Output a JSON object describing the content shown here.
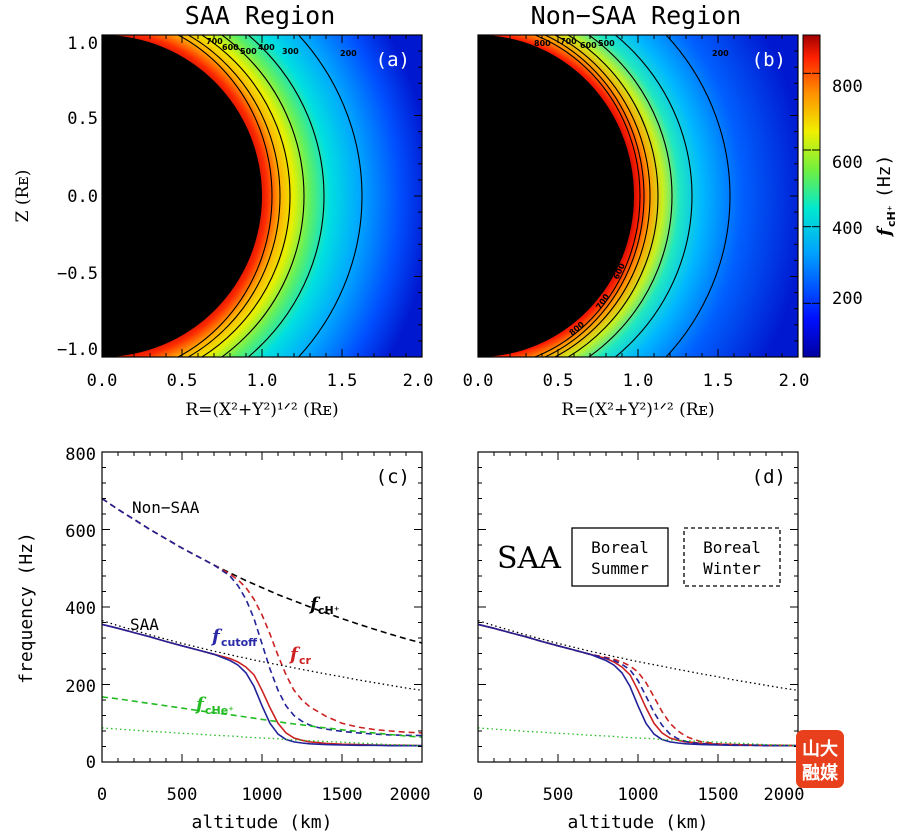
{
  "chart_data": [
    {
      "type": "heatmap",
      "panel": "(a)",
      "title": "SAA Region",
      "xlabel": "R=(X²+Y²)¹ᐟ² (Rᴇ)",
      "ylabel": "Z (Rᴇ)",
      "xlim": [
        0.0,
        2.0
      ],
      "ylim": [
        -1.05,
        1.05
      ],
      "xticks": [
        "0.0",
        "0.5",
        "1.0",
        "1.5",
        "2.0"
      ],
      "yticks": [
        "1.0",
        "0.5",
        "0.0",
        "−0.5",
        "−1.0"
      ],
      "contour_levels": [
        "700",
        "600",
        "500",
        "400",
        "300",
        "200"
      ]
    },
    {
      "type": "heatmap",
      "panel": "(b)",
      "title": "Non−SAA Region",
      "xlabel": "R=(X²+Y²)¹ᐟ² (Rᴇ)",
      "xlim": [
        0.0,
        2.0
      ],
      "ylim": [
        -1.05,
        1.05
      ],
      "xticks": [
        "0.0",
        "0.5",
        "1.0",
        "1.5",
        "2.0"
      ],
      "contour_levels": [
        "800",
        "700",
        "600",
        "500",
        "400",
        "300",
        "200"
      ],
      "colorbar": {
        "label": "f",
        "label_sub": "cH⁺",
        "label_unit": "(Hz)",
        "range": [
          60,
          900
        ],
        "ticks": [
          "800",
          "600",
          "400",
          "200"
        ]
      }
    },
    {
      "type": "line",
      "panel": "(c)",
      "xlabel": "altitude (km)",
      "ylabel": "frequency (Hz)",
      "xlim": [
        0,
        2000
      ],
      "ylim": [
        0,
        800
      ],
      "xticks": [
        "0",
        "500",
        "1000",
        "1500",
        "2000"
      ],
      "yticks": [
        "800",
        "600",
        "400",
        "200",
        "0"
      ],
      "x": [
        0,
        100,
        200,
        300,
        400,
        500,
        600,
        700,
        800,
        850,
        900,
        950,
        1000,
        1050,
        1100,
        1150,
        1200,
        1250,
        1300,
        1350,
        1400,
        1500,
        1600,
        1700,
        1800,
        1900,
        2000
      ],
      "series": [
        {
          "name": "Non-SAA fcH+",
          "style": "dashed",
          "color": "#000000",
          "values": [
            680,
            652,
            626,
            600,
            576,
            552,
            530,
            508,
            488,
            478,
            468,
            459,
            450,
            441,
            432,
            424,
            416,
            408,
            400,
            392,
            385,
            370,
            356,
            343,
            330,
            318,
            307
          ]
        },
        {
          "name": "Non-SAA fcr",
          "style": "dashed",
          "color": "#cc2222",
          "values": [
            680,
            652,
            626,
            600,
            576,
            552,
            530,
            508,
            485,
            470,
            450,
            420,
            380,
            330,
            275,
            225,
            185,
            160,
            142,
            130,
            118,
            100,
            90,
            84,
            80,
            77,
            75
          ]
        },
        {
          "name": "Non-SAA fcutoff",
          "style": "dashed",
          "color": "#222299",
          "values": [
            680,
            652,
            626,
            600,
            576,
            552,
            530,
            508,
            480,
            455,
            420,
            370,
            305,
            240,
            185,
            145,
            120,
            105,
            95,
            89,
            85,
            79,
            75,
            72,
            70,
            69,
            68
          ]
        },
        {
          "name": "SAA fcH+",
          "style": "dotted",
          "color": "#000000",
          "values": [
            365,
            352,
            340,
            328,
            317,
            306,
            296,
            286,
            277,
            272,
            268,
            263,
            259,
            255,
            251,
            247,
            243,
            239,
            235,
            231,
            227,
            220,
            212,
            205,
            198,
            191,
            185
          ]
        },
        {
          "name": "SAA fcr",
          "style": "solid",
          "color": "#cc2222",
          "values": [
            355,
            345,
            334,
            323,
            311,
            300,
            289,
            278,
            267,
            258,
            245,
            225,
            185,
            140,
            100,
            75,
            62,
            56,
            52,
            50,
            48,
            46,
            45,
            44,
            43,
            43,
            42
          ]
        },
        {
          "name": "SAA fcutoff",
          "style": "solid",
          "color": "#222299",
          "values": [
            355,
            345,
            334,
            323,
            311,
            300,
            289,
            278,
            262,
            250,
            230,
            195,
            145,
            100,
            72,
            58,
            52,
            49,
            47,
            46,
            45,
            44,
            43,
            43,
            42,
            42,
            42
          ]
        },
        {
          "name": "Non-SAA fcHe+",
          "style": "dashed",
          "color": "#22bb22",
          "values": [
            168,
            163,
            157,
            151,
            145,
            139,
            133,
            127,
            122,
            119,
            116,
            113,
            110,
            107,
            104,
            101,
            98,
            96,
            93,
            90,
            88,
            83,
            79,
            75,
            71,
            67,
            64
          ]
        },
        {
          "name": "SAA fcHe+",
          "style": "dotted",
          "color": "#22bb22",
          "values": [
            88,
            85,
            82,
            79,
            77,
            74,
            72,
            69,
            67,
            66,
            64,
            63,
            62,
            61,
            60,
            58,
            57,
            56,
            55,
            54,
            53,
            51,
            49,
            47,
            45,
            44,
            42
          ]
        }
      ],
      "annotations": {
        "non_saa": "Non−SAA",
        "saa": "SAA",
        "fch": "f",
        "fch_sub": "cH⁺",
        "fcutoff": "f",
        "fcutoff_sub": "cutoff",
        "fcr": "f",
        "fcr_sub": "cr",
        "fche": "f",
        "fche_sub": "cHe⁺"
      }
    },
    {
      "type": "line",
      "panel": "(d)",
      "xlabel": "altitude (km)",
      "xlim": [
        0,
        2000
      ],
      "ylim": [
        0,
        800
      ],
      "xticks": [
        "0",
        "500",
        "1000",
        "1500",
        "2000"
      ],
      "x": [
        0,
        100,
        200,
        300,
        400,
        500,
        600,
        700,
        800,
        850,
        900,
        950,
        1000,
        1050,
        1100,
        1150,
        1200,
        1250,
        1300,
        1350,
        1400,
        1500,
        1600,
        1700,
        1800,
        1900,
        2000
      ],
      "series": [
        {
          "name": "SAA fcH+",
          "style": "dotted",
          "color": "#000000",
          "values": [
            365,
            352,
            340,
            328,
            317,
            306,
            296,
            286,
            277,
            272,
            268,
            263,
            259,
            255,
            251,
            247,
            243,
            239,
            235,
            231,
            227,
            220,
            212,
            205,
            198,
            191,
            185
          ]
        },
        {
          "name": "Summer fcr",
          "style": "solid",
          "color": "#cc2222",
          "values": [
            355,
            345,
            334,
            323,
            311,
            300,
            289,
            278,
            267,
            258,
            245,
            225,
            185,
            140,
            100,
            75,
            62,
            56,
            52,
            50,
            48,
            46,
            45,
            44,
            43,
            43,
            42
          ]
        },
        {
          "name": "Summer fcutoff",
          "style": "solid",
          "color": "#222299",
          "values": [
            355,
            345,
            334,
            323,
            311,
            300,
            289,
            278,
            262,
            250,
            230,
            195,
            145,
            100,
            72,
            58,
            52,
            49,
            47,
            46,
            45,
            44,
            43,
            43,
            42,
            42,
            42
          ]
        },
        {
          "name": "Winter fcr",
          "style": "dashed",
          "color": "#cc2222",
          "values": [
            355,
            345,
            334,
            323,
            311,
            300,
            289,
            278,
            270,
            265,
            258,
            248,
            232,
            205,
            168,
            130,
            100,
            80,
            66,
            58,
            52,
            47,
            45,
            44,
            43,
            43,
            42
          ]
        },
        {
          "name": "Winter fcutoff",
          "style": "dashed",
          "color": "#222299",
          "values": [
            355,
            345,
            334,
            323,
            311,
            300,
            289,
            278,
            268,
            262,
            252,
            238,
            210,
            170,
            128,
            95,
            72,
            60,
            53,
            49,
            47,
            45,
            44,
            43,
            43,
            42,
            42
          ]
        },
        {
          "name": "SAA fcHe+",
          "style": "dotted",
          "color": "#22bb22",
          "values": [
            88,
            85,
            82,
            79,
            77,
            74,
            72,
            69,
            67,
            66,
            64,
            63,
            62,
            61,
            60,
            58,
            57,
            56,
            55,
            54,
            53,
            51,
            49,
            47,
            45,
            44,
            42
          ]
        }
      ],
      "annotations": {
        "saa": "SAA",
        "summer_1": "Boreal",
        "summer_2": "Summer",
        "winter_1": "Boreal",
        "winter_2": "Winter"
      }
    }
  ],
  "logo": {
    "line1": "山大",
    "line2": "融媒"
  }
}
